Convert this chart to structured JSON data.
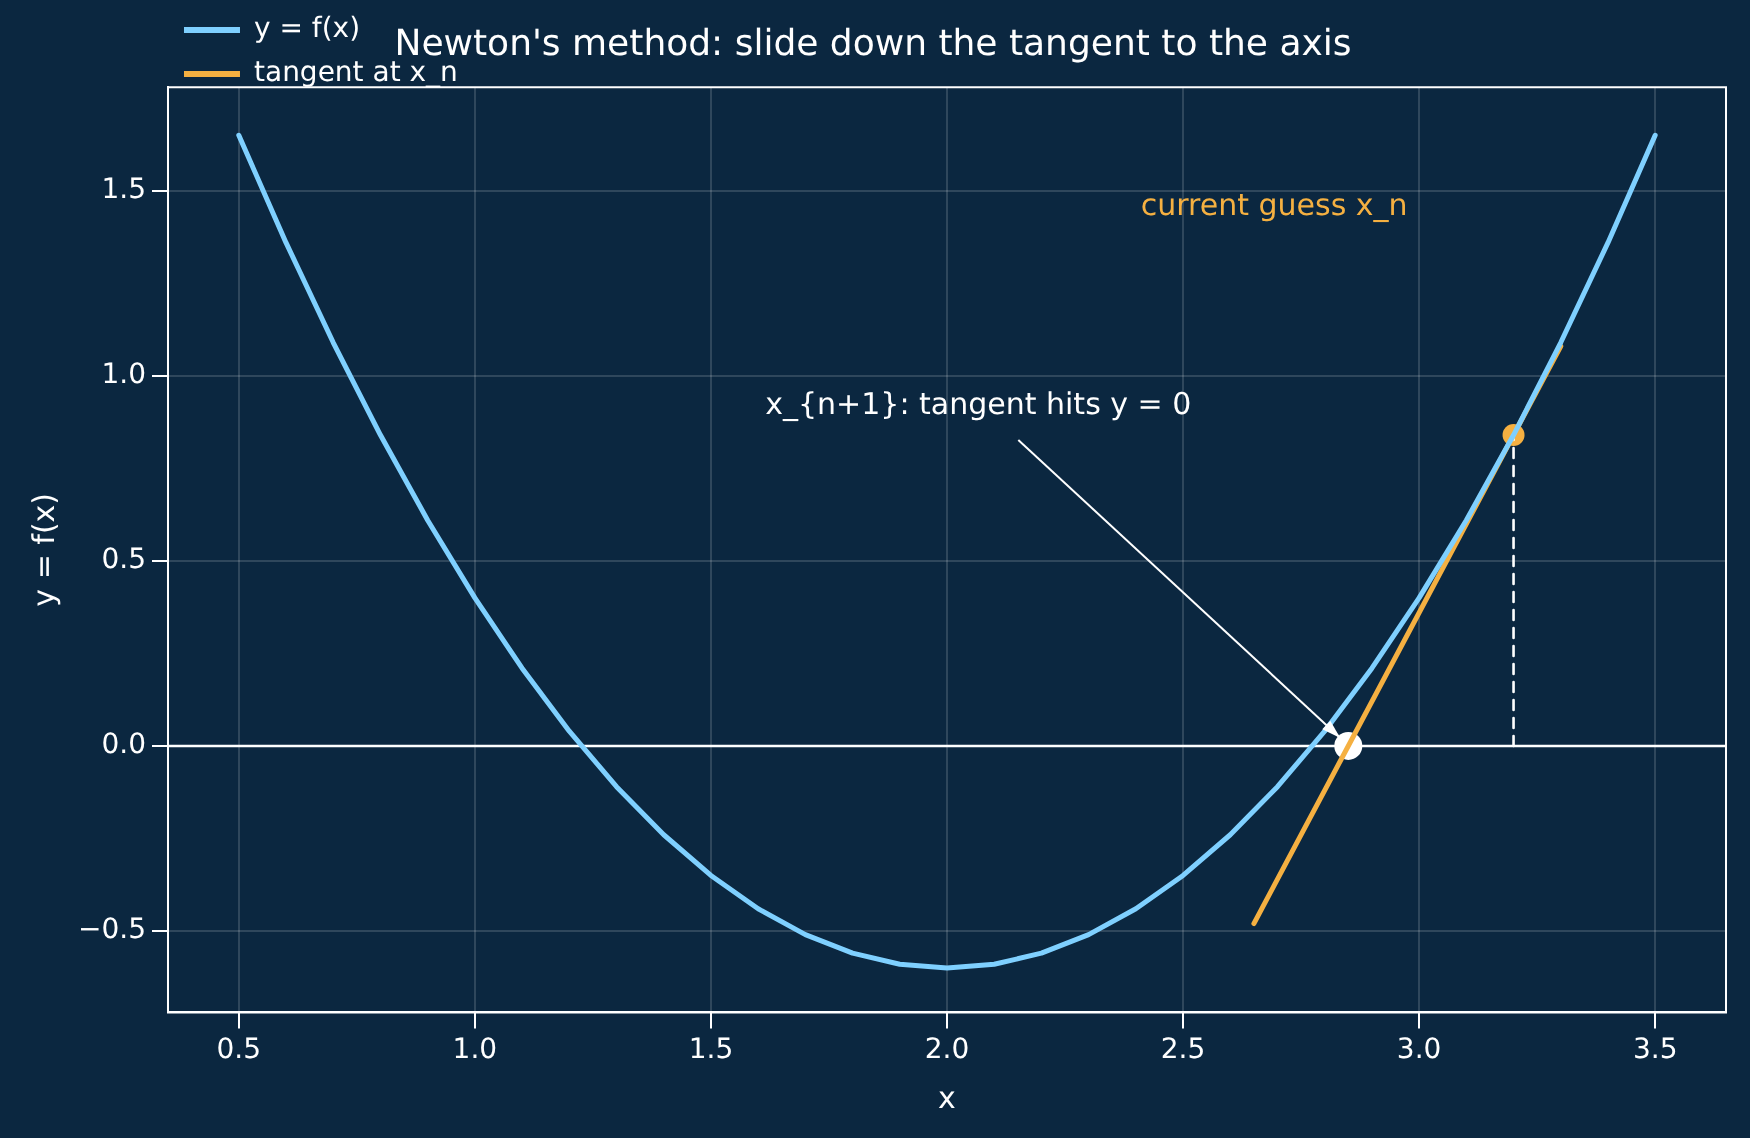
{
  "chart_data": {
    "type": "line",
    "title": "Newton's method: slide down the tangent to the axis",
    "xlabel": "x",
    "ylabel": "y = f(x)",
    "xlim": [
      0.35,
      3.65
    ],
    "ylim": [
      -0.72,
      1.78
    ],
    "xticks": [
      0.5,
      {
        "value": 1,
        "label": "1.0"
      },
      1.5,
      {
        "value": 2,
        "label": "2.0"
      },
      2.5,
      {
        "value": 3,
        "label": "3.0"
      },
      3.5
    ],
    "yticks": [
      {
        "value": -0.5,
        "label": "−0.5"
      },
      {
        "value": 0,
        "label": "0.0"
      },
      0.5,
      {
        "value": 1,
        "label": "1.0"
      },
      1.5
    ],
    "grid": true,
    "legend": "top left",
    "series": [
      {
        "name": "y = f(x)",
        "color": "#7fd0ff",
        "x": [
          0.5,
          0.6,
          0.7,
          0.8,
          0.9,
          1.0,
          1.1,
          1.2,
          1.3,
          1.4,
          1.5,
          1.6,
          1.7,
          1.8,
          1.9,
          2.0,
          2.1,
          2.2,
          2.3,
          2.4,
          2.5,
          2.6,
          2.7,
          2.8,
          2.9,
          3.0,
          3.1,
          3.2,
          3.3,
          3.4,
          3.5
        ],
        "values": [
          1.65,
          1.36,
          1.09,
          0.84,
          0.61,
          0.4,
          0.21,
          0.04,
          -0.11,
          -0.24,
          -0.35,
          -0.44,
          -0.51,
          -0.56,
          -0.59,
          -0.6,
          -0.59,
          -0.56,
          -0.51,
          -0.44,
          -0.35,
          -0.24,
          -0.11,
          0.04,
          0.21,
          0.4,
          0.61,
          0.84,
          1.09,
          1.36,
          1.65
        ]
      },
      {
        "name": "tangent at x_n",
        "color": "#f5b041",
        "x": [
          2.65,
          3.3
        ],
        "values": [
          -0.48,
          1.08
        ]
      },
      {
        "type": "line",
        "color": "#ffffff",
        "line_style": "dashed",
        "x": [
          3.2,
          3.2
        ],
        "values": [
          0,
          0.84
        ]
      },
      {
        "type": "scatter",
        "color": "#f5b041",
        "x": [
          3.2
        ],
        "values": [
          0.84
        ]
      },
      {
        "type": "scatter",
        "color": "#ffffff",
        "x": [
          2.85
        ],
        "values": [
          0
        ]
      }
    ],
    "ref_lines": [
      {
        "axis": "y",
        "value": 0,
        "color": "#ffffff"
      }
    ],
    "annotations": [
      "current guess x_n",
      {
        "text": "x_{n+1}: tangent hits y = 0",
        "x": 2.85,
        "y": 0
      }
    ]
  }
}
